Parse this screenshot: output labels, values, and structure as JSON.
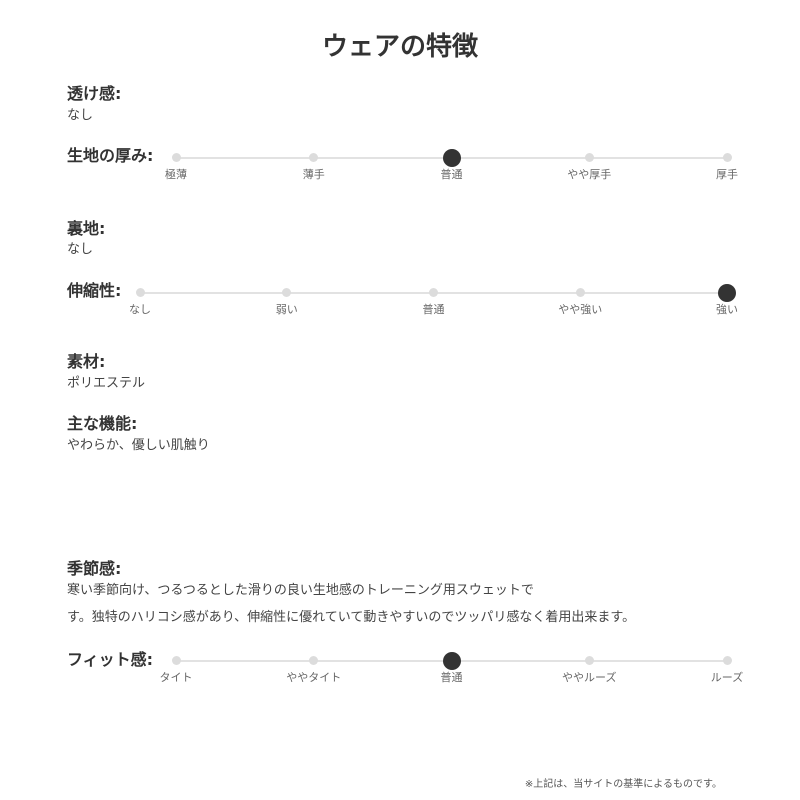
{
  "title": "ウェアの特徴",
  "transparency": {
    "label": "透け感:",
    "value": "なし"
  },
  "thickness": {
    "label": "生地の厚み:",
    "options": [
      "極薄",
      "薄手",
      "普通",
      "やや厚手",
      "厚手"
    ],
    "selected_index": 2
  },
  "lining": {
    "label": "裏地:",
    "value": "なし"
  },
  "stretch": {
    "label": "伸縮性:",
    "options": [
      "なし",
      "弱い",
      "普通",
      "やや強い",
      "強い"
    ],
    "selected_index": 4
  },
  "material": {
    "label": "素材:",
    "value": "ポリエステル"
  },
  "function": {
    "label": "主な機能:",
    "value": "やわらか、優しい肌触り"
  },
  "season": {
    "label": "季節感:",
    "lines": [
      "寒い季節向け、つるつるとした滑りの良い生地感のトレーニング用スウェットで",
      "す。独特のハリコシ感があり、伸縮性に優れていて動きやすいのでツッパリ感なく着用出来ます。"
    ]
  },
  "fit": {
    "label": "フィット感:",
    "options": [
      "タイト",
      "ややタイト",
      "普通",
      "ややルーズ",
      "ルーズ"
    ],
    "selected_index": 2
  },
  "footnote": "※上記は、当サイトの基準によるものです。"
}
